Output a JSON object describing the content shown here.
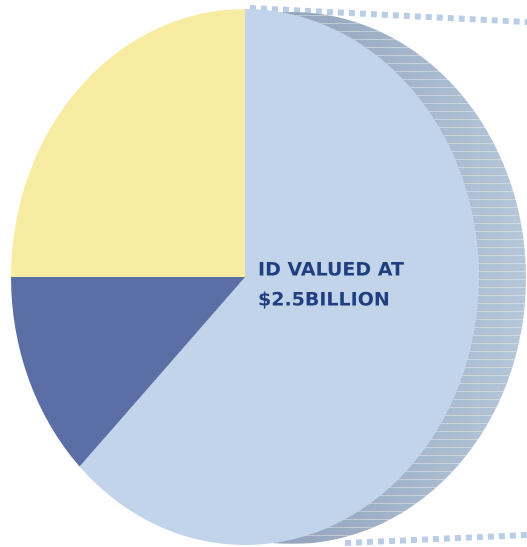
{
  "chart_data": {
    "type": "pie",
    "values": [
      62.5,
      12.5,
      25
    ],
    "colors": [
      "#c2d4ea",
      "#5b6ea5",
      "#f8eca3"
    ],
    "annotation": [
      "ID VALUED AT",
      "$2.5BILLION"
    ]
  }
}
